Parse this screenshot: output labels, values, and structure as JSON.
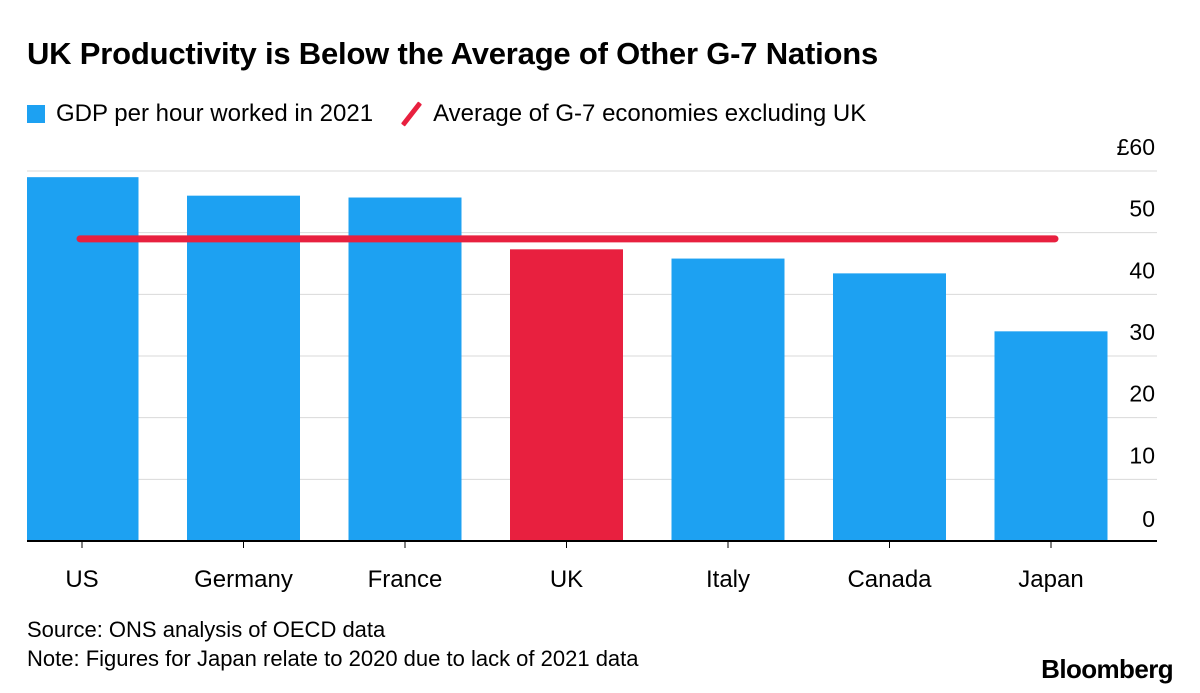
{
  "colors": {
    "bar": "#1da1f2",
    "highlight": "#e8203f",
    "average_line": "#e8203f",
    "grid": "#d9d9d9",
    "axis": "#000000",
    "text": "#000000"
  },
  "chart_data": {
    "type": "bar",
    "title": "UK Productivity is Below the Average of Other G-7 Nations",
    "legend": [
      {
        "name": "GDP per hour worked in 2021",
        "kind": "bar"
      },
      {
        "name": "Average of G-7 economies excluding UK",
        "kind": "line"
      }
    ],
    "categories": [
      "US",
      "Germany",
      "France",
      "UK",
      "Italy",
      "Canada",
      "Japan"
    ],
    "values": [
      59,
      56,
      55.7,
      47.3,
      45.8,
      43.4,
      34
    ],
    "highlight_category": "UK",
    "average_line": 49,
    "y_axis": {
      "min": 0,
      "max": 60,
      "ticks": [
        0,
        10,
        20,
        30,
        40,
        50,
        60
      ],
      "tick_labels": [
        "0",
        "10",
        "20",
        "30",
        "40",
        "50",
        "£60"
      ],
      "position": "right"
    },
    "xlabel": "",
    "ylabel": "",
    "grid": true
  },
  "footer": {
    "source": "Source: ONS analysis of OECD data",
    "note": "Note: Figures for Japan relate to 2020 due to lack of 2021 data",
    "brand": "Bloomberg"
  }
}
